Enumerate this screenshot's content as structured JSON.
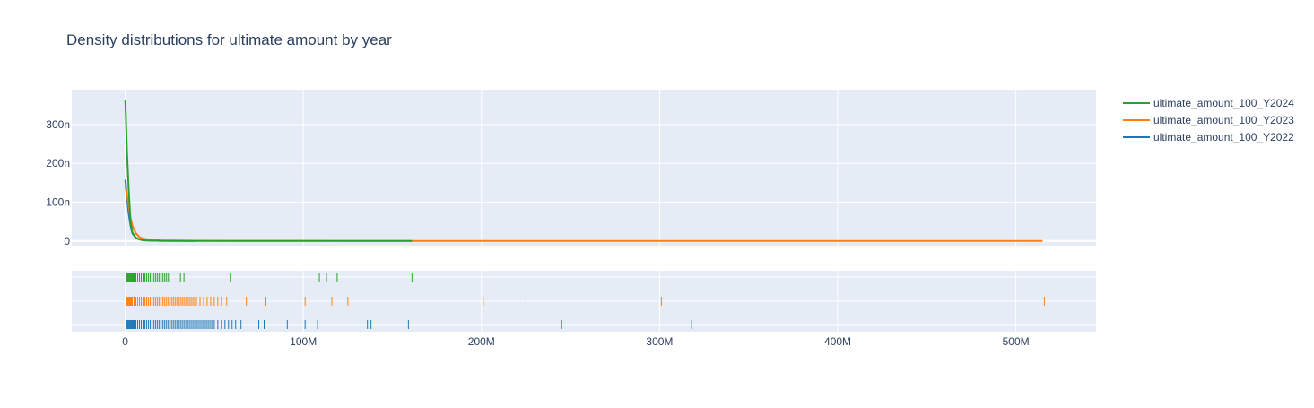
{
  "chart_data": {
    "type": "line",
    "title": "Density distributions for ultimate amount by year",
    "xlabel": "",
    "ylabel": "",
    "x_tick_labels": [
      "0",
      "100M",
      "200M",
      "300M",
      "400M",
      "500M"
    ],
    "x_tick_values": [
      0,
      100000000,
      200000000,
      300000000,
      400000000,
      500000000
    ],
    "xlim": [
      -30000000,
      545000000
    ],
    "y_tick_labels": [
      "0",
      "100n",
      "200n",
      "300n"
    ],
    "y_tick_values": [
      0,
      1e-07,
      2e-07,
      3e-07
    ],
    "ylim": [
      -1.2e-08,
      3.9e-07
    ],
    "grid": true,
    "legend_position": "top-right",
    "series": [
      {
        "name": "ultimate_amount_100_Y2024",
        "color": "#2ca02c",
        "density_x": [
          100000,
          1000000,
          2000000,
          3000000,
          4000000,
          6000000,
          8000000,
          10000000,
          15000000,
          20000000,
          40000000,
          80000000,
          120000000,
          161000000
        ],
        "density_y": [
          3.62e-07,
          2.3e-07,
          1.3e-07,
          5e-08,
          2.2e-08,
          8e-09,
          4e-09,
          2e-09,
          1e-09,
          5e-10,
          2e-10,
          1e-10,
          5e-11,
          2e-11
        ],
        "rug_x": [
          500000,
          1000000,
          1500000,
          2000000,
          2500000,
          3000000,
          3500000,
          4000000,
          4500000,
          5000000,
          6000000,
          7000000,
          8000000,
          9000000,
          10000000,
          11000000,
          12000000,
          13000000,
          14000000,
          15000000,
          16000000,
          17000000,
          18000000,
          19000000,
          20000000,
          21000000,
          22000000,
          23000000,
          24000000,
          25000000,
          31000000,
          33000000,
          59000000,
          109000000,
          113000000,
          119000000,
          161000000
        ]
      },
      {
        "name": "ultimate_amount_100_Y2023",
        "color": "#ff7f0e",
        "density_x": [
          100000,
          1000000,
          2000000,
          3000000,
          4000000,
          6000000,
          8000000,
          10000000,
          15000000,
          20000000,
          40000000,
          100000000,
          200000000,
          320000000,
          515000000
        ],
        "density_y": [
          1.4e-07,
          1.2e-07,
          9e-08,
          6e-08,
          4e-08,
          2e-08,
          1e-08,
          6e-09,
          3e-09,
          1.5e-09,
          6e-10,
          3e-10,
          2e-10,
          1e-10,
          5e-11
        ],
        "rug_x": [
          500000,
          1000000,
          1500000,
          2000000,
          2500000,
          3000000,
          3500000,
          4000000,
          5000000,
          6000000,
          7000000,
          8000000,
          9000000,
          10000000,
          11000000,
          12000000,
          13000000,
          14000000,
          15000000,
          16000000,
          17000000,
          18000000,
          19000000,
          20000000,
          21000000,
          22000000,
          23000000,
          24000000,
          25000000,
          26000000,
          27000000,
          28000000,
          29000000,
          30000000,
          31000000,
          32000000,
          33000000,
          34000000,
          35000000,
          36000000,
          37000000,
          38000000,
          39000000,
          40000000,
          42000000,
          44000000,
          46000000,
          48000000,
          50000000,
          52000000,
          54000000,
          57000000,
          68000000,
          79000000,
          101000000,
          116000000,
          125000000,
          201000000,
          225000000,
          301000000,
          516000000
        ]
      },
      {
        "name": "ultimate_amount_100_Y2022",
        "color": "#1f77b4",
        "density_x": [
          100000,
          1000000,
          2000000,
          3000000,
          4000000,
          6000000,
          8000000,
          10000000,
          15000000,
          20000000,
          40000000
        ],
        "density_y": [
          1.58e-07,
          1.1e-07,
          7e-08,
          4e-08,
          2e-08,
          8e-09,
          4e-09,
          2e-09,
          1e-09,
          5e-10,
          2e-10
        ],
        "rug_x": [
          500000,
          1000000,
          1500000,
          2000000,
          2500000,
          3000000,
          3500000,
          4000000,
          4500000,
          5000000,
          6000000,
          7000000,
          8000000,
          9000000,
          10000000,
          11000000,
          12000000,
          13000000,
          14000000,
          15000000,
          16000000,
          17000000,
          18000000,
          19000000,
          20000000,
          21000000,
          22000000,
          23000000,
          24000000,
          25000000,
          26000000,
          27000000,
          28000000,
          29000000,
          30000000,
          31000000,
          32000000,
          33000000,
          34000000,
          35000000,
          36000000,
          37000000,
          38000000,
          39000000,
          40000000,
          41000000,
          42000000,
          43000000,
          44000000,
          45000000,
          46000000,
          47000000,
          48000000,
          49000000,
          50000000,
          52000000,
          54000000,
          56000000,
          58000000,
          60000000,
          62000000,
          65000000,
          75000000,
          78000000,
          91000000,
          101000000,
          108000000,
          136000000,
          138000000,
          159000000,
          245000000,
          318000000
        ]
      }
    ]
  }
}
